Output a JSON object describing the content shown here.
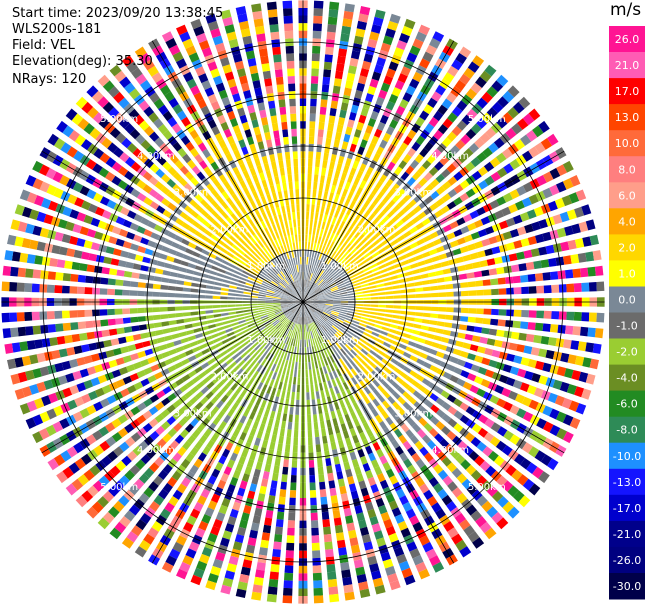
{
  "header": {
    "start_time": "Start time: 2023/09/20 13:38:45",
    "instrument": "WLS200s-181",
    "field": "Field: VEL",
    "elevation": "Elevation(deg): 35.30",
    "nrays": "NRays: 120"
  },
  "colorbar": {
    "unit": "m/s",
    "bins": [
      {
        "label": "26.0",
        "color": "#ff1493"
      },
      {
        "label": "21.0",
        "color": "#ff5cb4"
      },
      {
        "label": "17.0",
        "color": "#ff0000"
      },
      {
        "label": "13.0",
        "color": "#ff4500"
      },
      {
        "label": "10.0",
        "color": "#ff6a3a"
      },
      {
        "label": "8.0",
        "color": "#ff7f7f"
      },
      {
        "label": "6.0",
        "color": "#ff9e8a"
      },
      {
        "label": "4.0",
        "color": "#ffa500"
      },
      {
        "label": "2.0",
        "color": "#ffd700"
      },
      {
        "label": "1.0",
        "color": "#ffff00"
      },
      {
        "label": "0.0",
        "color": "#7a8896"
      },
      {
        "label": "-1.0",
        "color": "#6b6b6b"
      },
      {
        "label": "-2.0",
        "color": "#9acd32"
      },
      {
        "label": "-4.0",
        "color": "#6b8e23"
      },
      {
        "label": "-6.0",
        "color": "#228b22"
      },
      {
        "label": "-8.0",
        "color": "#2e8b57"
      },
      {
        "label": "-10.0",
        "color": "#1e90ff"
      },
      {
        "label": "-13.0",
        "color": "#1414ff"
      },
      {
        "label": "-17.0",
        "color": "#0000cd"
      },
      {
        "label": "-21.0",
        "color": "#00008b"
      },
      {
        "label": "-26.0",
        "color": "#000080"
      },
      {
        "label": "-30.0",
        "color": "#00004a"
      }
    ]
  },
  "chart_data": {
    "type": "heatmap",
    "projection": "ppi-polar",
    "field": "VEL",
    "units": "m/s",
    "elevation_deg": 35.3,
    "n_rays": 120,
    "range_rings_km": [
      1.0,
      2.0,
      3.0,
      4.0,
      5.0
    ],
    "ring_labels": [
      "1.00km",
      "2.00km",
      "3.00km",
      "4.00km",
      "5.00km"
    ],
    "max_range_km": 5.8,
    "azimuth_spokes_deg": [
      0,
      30,
      60,
      90,
      120,
      150,
      180,
      210,
      240,
      270,
      300,
      330
    ],
    "regions": [
      {
        "description": "near-field clutter",
        "range_km": [
          0,
          0.5
        ],
        "value_ms": 0.0
      },
      {
        "description": "north/north-east approaching band",
        "azimuth_deg": [
          300,
          110
        ],
        "range_km": [
          0.5,
          3.0
        ],
        "value_ms": 2.0
      },
      {
        "description": "south/south-west receding band",
        "azimuth_deg": [
          150,
          270
        ],
        "range_km": [
          0.5,
          3.0
        ],
        "value_ms": -2.0
      },
      {
        "description": "far-field noisy returns",
        "range_km": [
          3.0,
          5.8
        ],
        "value_ms": "mixed"
      }
    ]
  }
}
